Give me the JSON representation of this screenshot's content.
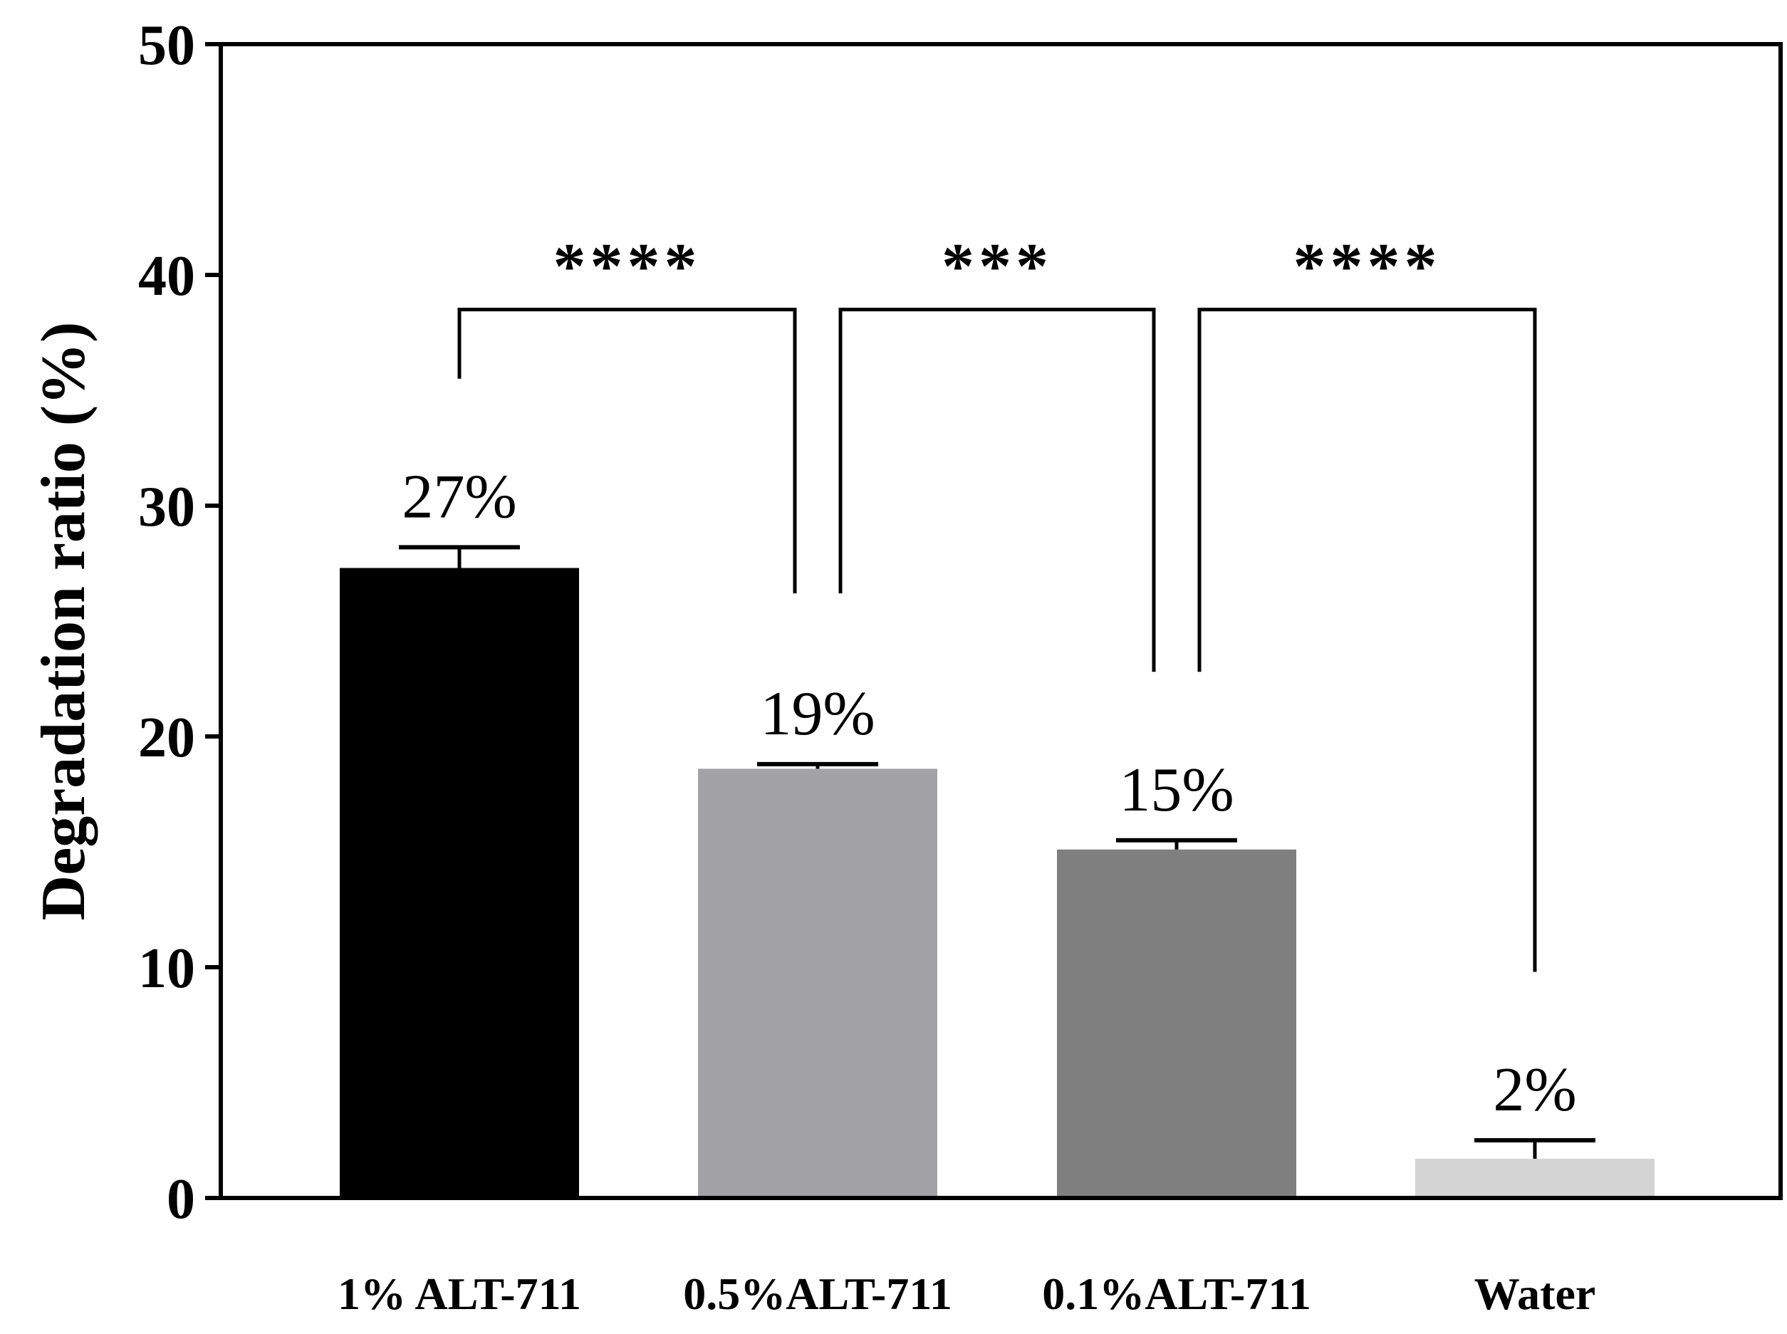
{
  "chart_data": {
    "type": "bar",
    "title": "",
    "xlabel": "",
    "ylabel": "Degradation ratio (%)",
    "ylim": [
      0,
      50
    ],
    "yticks": [
      0,
      10,
      20,
      30,
      40,
      50
    ],
    "grid": false,
    "categories": [
      "1% ALT-711",
      "0.5%ALT-711",
      "0.1%ALT-711",
      "Water"
    ],
    "values": [
      27.3,
      18.6,
      15.1,
      1.7
    ],
    "errors": [
      0.9,
      0.2,
      0.4,
      0.8
    ],
    "value_labels": [
      "27%",
      "19%",
      "15%",
      "2%"
    ],
    "colors": [
      "#000000",
      "#a3a3a7",
      "#7f7f7f",
      "#d4d4d4"
    ],
    "significance": [
      {
        "from": 0,
        "to": 1,
        "label": "****",
        "bracket_y": 38.5,
        "left_drop_to": 35.5,
        "right_drop_to": 26.2
      },
      {
        "from": 1,
        "to": 2,
        "label": "***",
        "bracket_y": 38.5,
        "left_drop_to": 26.2,
        "right_drop_to": 22.8
      },
      {
        "from": 2,
        "to": 3,
        "label": "****",
        "bracket_y": 38.5,
        "left_drop_to": 22.8,
        "right_drop_to": 9.8
      }
    ]
  }
}
